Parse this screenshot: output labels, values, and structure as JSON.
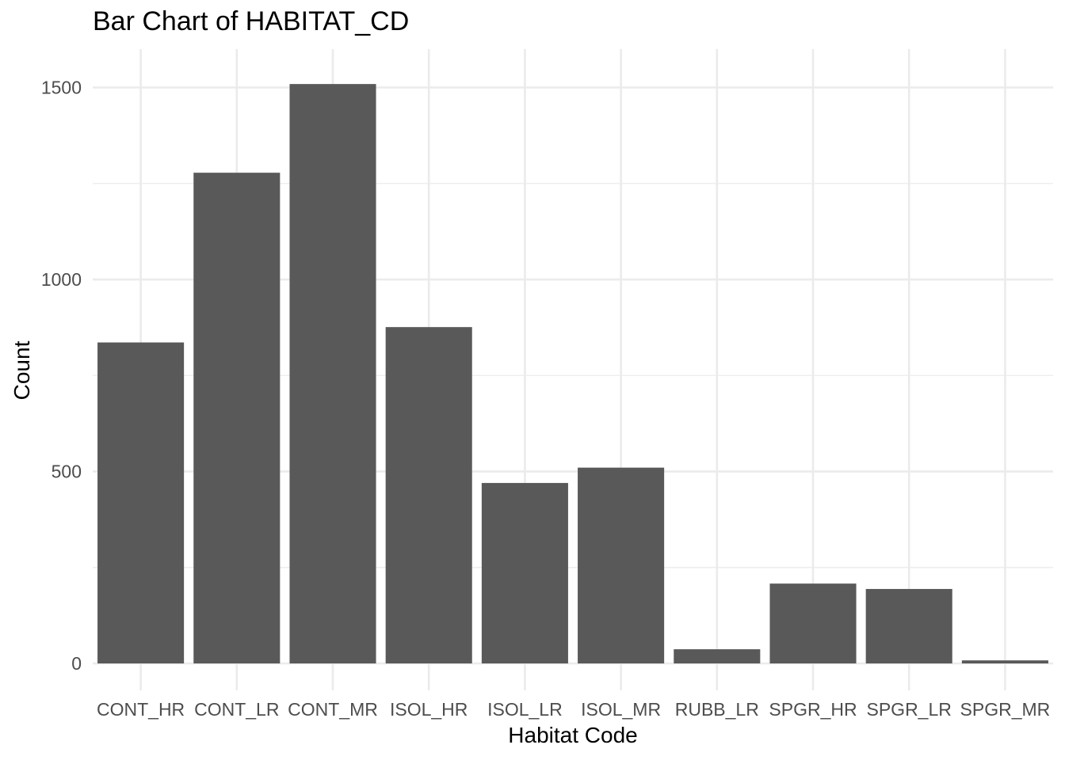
{
  "chart_data": {
    "type": "bar",
    "title": "Bar Chart of HABITAT_CD",
    "xlabel": "Habitat Code",
    "ylabel": "Count",
    "categories": [
      "CONT_HR",
      "CONT_LR",
      "CONT_MR",
      "ISOL_HR",
      "ISOL_LR",
      "ISOL_MR",
      "RUBB_LR",
      "SPGR_HR",
      "SPGR_LR",
      "SPGR_MR"
    ],
    "values": [
      836,
      1278,
      1509,
      876,
      470,
      510,
      37,
      208,
      194,
      8
    ],
    "ylim": [
      -70,
      1600
    ],
    "yticks": [
      0,
      500,
      1000,
      1500
    ],
    "grid": true,
    "bar_color": "#595959",
    "grid_color": "#ebebeb"
  }
}
